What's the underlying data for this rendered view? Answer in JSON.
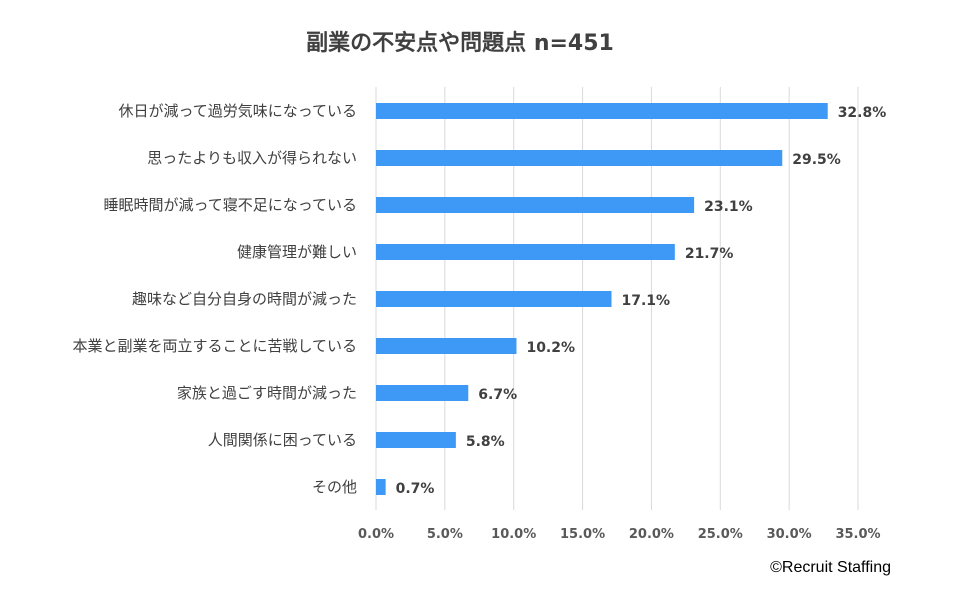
{
  "chart_data": {
    "type": "bar",
    "orientation": "horizontal",
    "title": "副業の不安点や問題点 n=451",
    "categories": [
      "休日が減って過労気味になっている",
      "思ったよりも収入が得られない",
      "睡眠時間が減って寝不足になっている",
      "健康管理が難しい",
      "趣味など自分自身の時間が減った",
      "本業と副業を両立することに苦戦している",
      "家族と過ごす時間が減った",
      "人間関係に困っている",
      "その他"
    ],
    "values": [
      32.8,
      29.5,
      23.1,
      21.7,
      17.1,
      10.2,
      6.7,
      5.8,
      0.7
    ],
    "value_labels": [
      "32.8%",
      "29.5%",
      "23.1%",
      "21.7%",
      "17.1%",
      "10.2%",
      "6.7%",
      "5.8%",
      "0.7%"
    ],
    "xlim": [
      0,
      35
    ],
    "xticks": [
      "0.0%",
      "5.0%",
      "10.0%",
      "15.0%",
      "20.0%",
      "25.0%",
      "30.0%",
      "35.0%"
    ],
    "grid": true,
    "bar_color": "#3d99f5",
    "grid_color": "#d9d9d9"
  },
  "credit": "©Recruit Staffing"
}
